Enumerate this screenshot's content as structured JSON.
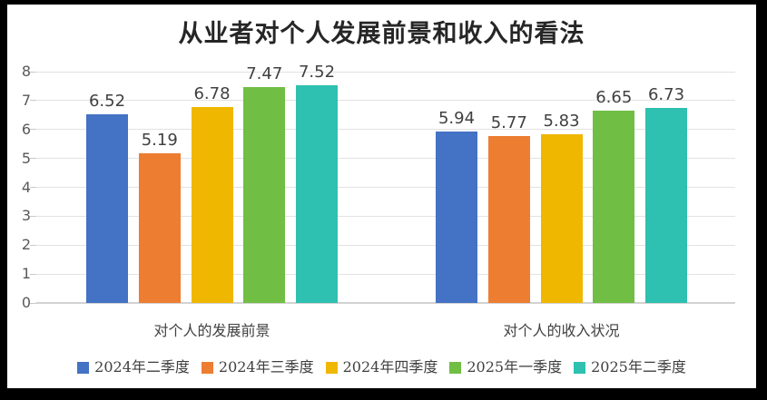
{
  "chart_data": {
    "type": "bar",
    "title": "从业者对个人发展前景和收入的看法",
    "categories": [
      "对个人的发展前景",
      "对个人的收入状况"
    ],
    "series": [
      {
        "name": "2024年二季度",
        "color": "#4472C4",
        "values": [
          6.52,
          5.94
        ]
      },
      {
        "name": "2024年三季度",
        "color": "#ED7D31",
        "values": [
          5.19,
          5.77
        ]
      },
      {
        "name": "2024年四季度",
        "color": "#F0B700",
        "values": [
          6.78,
          5.83
        ]
      },
      {
        "name": "2025年一季度",
        "color": "#70BE44",
        "values": [
          7.47,
          6.65
        ]
      },
      {
        "name": "2025年二季度",
        "color": "#2EC0B0",
        "values": [
          7.52,
          6.73
        ]
      }
    ],
    "xlabel": "",
    "ylabel": "",
    "ylim": [
      0,
      8
    ],
    "yticks": [
      0,
      1,
      2,
      3,
      4,
      5,
      6,
      7,
      8
    ],
    "grid": true,
    "legend_position": "bottom",
    "data_labels": true,
    "colors": {
      "gridline": "#e2e2e2",
      "axis_line": "#d2d2d2",
      "tick_label": "#595959",
      "data_label": "#404040",
      "title": "#262626"
    }
  }
}
